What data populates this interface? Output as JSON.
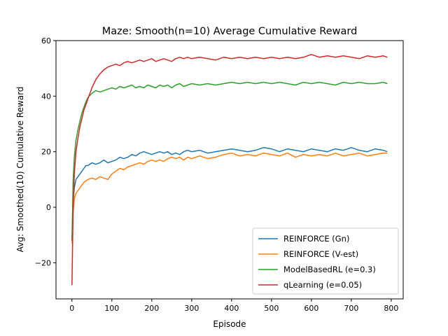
{
  "chart_data": {
    "type": "line",
    "title": "Maze: Smooth(n=10) Average Cumulative Reward",
    "xlabel": "Episode",
    "ylabel": "Avg: Smoothed(10) Cumulative Reward",
    "xlim": [
      -40,
      830
    ],
    "ylim": [
      -33,
      60
    ],
    "xticks": [
      0,
      100,
      200,
      300,
      400,
      500,
      600,
      700,
      800
    ],
    "yticks": [
      -20,
      0,
      20,
      40,
      60
    ],
    "grid": false,
    "legend_position": "lower right",
    "series": [
      {
        "name": "REINFORCE (Gn)",
        "color": "#1f77b4",
        "x": [
          0,
          3,
          6,
          10,
          15,
          20,
          25,
          30,
          35,
          40,
          50,
          60,
          70,
          80,
          90,
          100,
          110,
          120,
          130,
          140,
          150,
          160,
          170,
          180,
          190,
          200,
          210,
          220,
          230,
          240,
          250,
          260,
          270,
          280,
          290,
          300,
          320,
          340,
          360,
          380,
          400,
          420,
          440,
          460,
          480,
          500,
          520,
          540,
          560,
          580,
          600,
          620,
          640,
          660,
          680,
          700,
          720,
          740,
          760,
          780,
          790
        ],
        "y": [
          -12,
          2,
          7,
          10,
          11,
          12,
          13,
          14,
          15,
          15,
          16,
          15.5,
          16,
          17,
          16,
          16.5,
          17,
          18,
          17.5,
          18,
          19,
          18.5,
          19.5,
          20,
          19.5,
          19,
          19.5,
          20,
          19.5,
          20,
          19,
          19.5,
          19,
          20,
          20.5,
          20,
          20.5,
          19.5,
          20,
          20.5,
          21,
          20.5,
          20,
          20.5,
          21.5,
          21,
          20,
          21,
          20.5,
          20,
          21,
          20.5,
          20,
          21,
          20.5,
          21.5,
          20.5,
          20,
          21,
          20.5,
          20
        ]
      },
      {
        "name": "REINFORCE (V-est)",
        "color": "#ff7f0e",
        "x": [
          0,
          3,
          6,
          10,
          15,
          20,
          25,
          30,
          35,
          40,
          50,
          60,
          70,
          80,
          90,
          100,
          110,
          120,
          130,
          140,
          150,
          160,
          170,
          180,
          190,
          200,
          210,
          220,
          230,
          240,
          250,
          260,
          270,
          280,
          290,
          300,
          320,
          340,
          360,
          380,
          400,
          420,
          440,
          460,
          480,
          500,
          520,
          540,
          560,
          580,
          600,
          620,
          640,
          660,
          680,
          700,
          720,
          740,
          760,
          780,
          790
        ],
        "y": [
          -13,
          -2,
          3,
          5,
          6,
          7,
          8,
          9,
          9.5,
          10,
          10.5,
          10,
          11,
          10.5,
          10,
          12,
          13,
          14,
          13.5,
          14.5,
          15,
          15.5,
          16,
          15.5,
          16.5,
          17,
          16.5,
          17,
          16.5,
          17.5,
          18,
          17.5,
          18,
          17,
          18,
          17.5,
          18.5,
          17.5,
          18,
          19,
          19.5,
          18.5,
          19,
          18.5,
          19.5,
          19,
          18.5,
          19.5,
          18,
          19,
          18.5,
          19,
          18.5,
          19.5,
          18.5,
          19,
          19.5,
          18.5,
          19,
          19.5,
          19.5
        ]
      },
      {
        "name": "ModelBasedRL (e=0.3)",
        "color": "#2ca02c",
        "x": [
          0,
          3,
          6,
          10,
          15,
          20,
          25,
          30,
          35,
          40,
          50,
          60,
          70,
          80,
          90,
          100,
          110,
          120,
          130,
          140,
          150,
          160,
          170,
          180,
          190,
          200,
          210,
          220,
          230,
          240,
          250,
          260,
          270,
          280,
          290,
          300,
          320,
          340,
          360,
          380,
          400,
          420,
          440,
          460,
          480,
          500,
          520,
          540,
          560,
          580,
          600,
          620,
          640,
          660,
          680,
          700,
          720,
          740,
          760,
          780,
          790
        ],
        "y": [
          -12,
          10,
          18,
          24,
          28,
          31,
          34,
          36,
          38,
          39.5,
          41,
          42,
          41.5,
          42,
          42.5,
          43,
          42.5,
          43.5,
          43,
          43.5,
          44,
          43,
          43.5,
          43,
          44,
          43.5,
          43,
          44,
          43.5,
          44,
          43,
          44,
          44.5,
          43.5,
          44,
          44.5,
          44,
          44.5,
          44,
          44.5,
          45,
          44.5,
          45,
          44.5,
          45,
          44.5,
          45,
          44.5,
          44,
          45,
          44.5,
          45,
          44.5,
          44,
          45,
          44.5,
          45,
          44.5,
          44.5,
          45,
          44.5
        ]
      },
      {
        "name": "qLearning (e=0.05)",
        "color": "#d62728",
        "x": [
          0,
          3,
          6,
          10,
          15,
          20,
          25,
          30,
          35,
          40,
          50,
          60,
          70,
          80,
          90,
          100,
          110,
          120,
          130,
          140,
          150,
          160,
          170,
          180,
          190,
          200,
          210,
          220,
          230,
          240,
          250,
          260,
          270,
          280,
          290,
          300,
          320,
          340,
          360,
          380,
          400,
          420,
          440,
          460,
          480,
          500,
          520,
          540,
          560,
          580,
          600,
          620,
          640,
          660,
          680,
          700,
          720,
          740,
          760,
          780,
          790
        ],
        "y": [
          -28,
          0,
          12,
          20,
          25,
          29,
          32,
          35,
          37,
          39,
          43,
          46,
          48,
          49.5,
          50.5,
          51,
          51.5,
          51,
          52,
          52.5,
          52,
          52.5,
          53,
          52.5,
          53,
          53.5,
          52.5,
          53,
          53.5,
          53,
          52.5,
          53.5,
          54,
          53.5,
          54,
          53.5,
          54,
          53.5,
          53,
          54,
          53.5,
          54,
          53.5,
          54,
          53.5,
          54,
          53.5,
          54,
          53.5,
          54,
          55,
          54,
          54.5,
          54,
          54.5,
          54,
          53.5,
          54.5,
          54,
          54.5,
          54
        ]
      }
    ]
  }
}
